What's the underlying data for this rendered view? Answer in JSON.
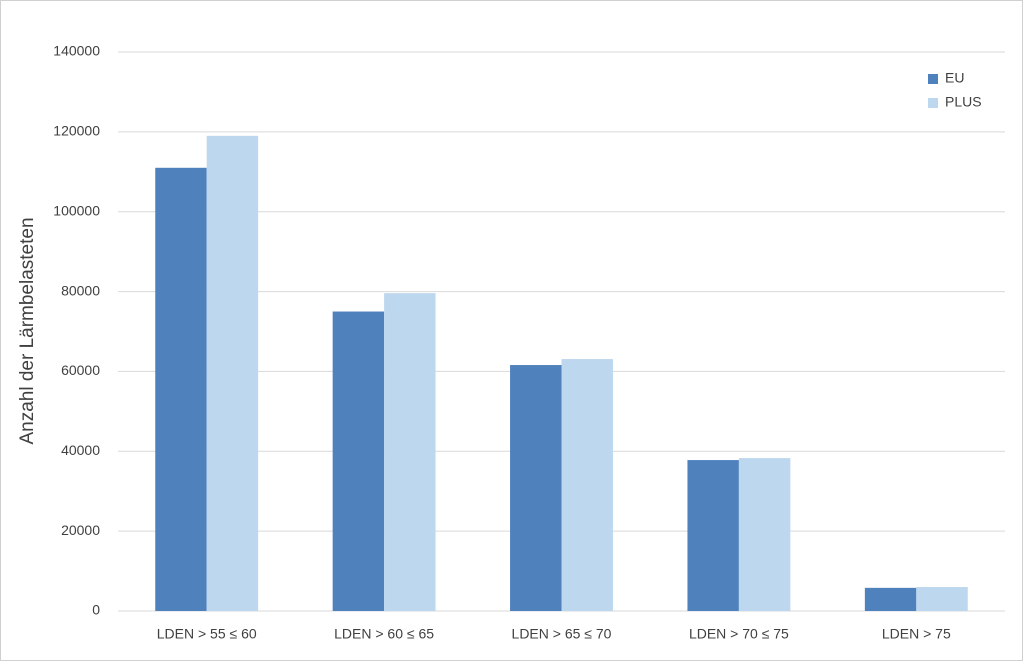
{
  "chart_data": {
    "type": "bar",
    "y_label": "Anzahl der Lärmbelasteten",
    "categories": [
      "LDEN > 55 ≤ 60",
      "LDEN > 60 ≤ 65",
      "LDEN > 65 ≤ 70",
      "LDEN > 70 ≤ 75",
      "LDEN > 75"
    ],
    "series": [
      {
        "name": "EU",
        "color": "#4f81bd",
        "values": [
          111000,
          75000,
          61600,
          37800,
          5800
        ]
      },
      {
        "name": "PLUS",
        "color": "#bdd7ee",
        "values": [
          119000,
          79600,
          63100,
          38300,
          6000
        ]
      }
    ],
    "ylim": [
      0,
      140000
    ],
    "yticks": [
      0,
      20000,
      40000,
      60000,
      80000,
      100000,
      120000,
      140000
    ],
    "grid": true,
    "legend": "top-right"
  }
}
